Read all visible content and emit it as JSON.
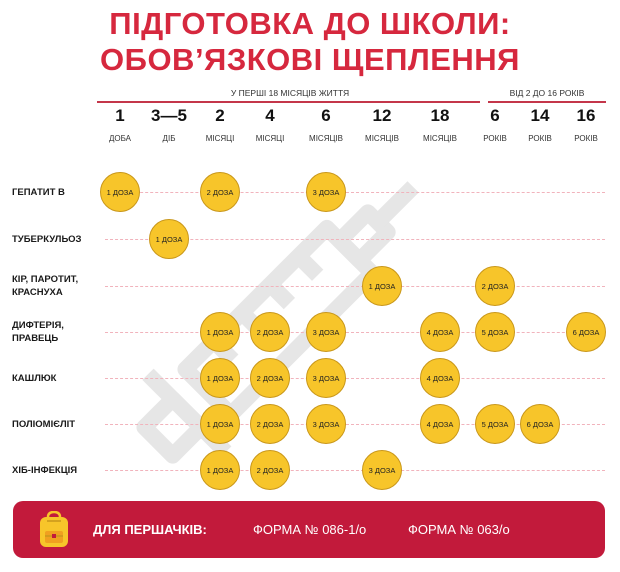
{
  "title": {
    "line1": "ПІДГОТОВКА ДО ШКОЛИ:",
    "line2": "ОБОВ’ЯЗКОВІ ЩЕПЛЕННЯ"
  },
  "periods": {
    "first": "У ПЕРШІ 18 МІСЯЦІВ ЖИТТЯ",
    "second": "ВІД 2 ДО 16 РОКІВ"
  },
  "ages": [
    {
      "num": "1",
      "unit": "ДОБА"
    },
    {
      "num": "3—5",
      "unit": "ДІБ"
    },
    {
      "num": "2",
      "unit": "МІСЯЦІ"
    },
    {
      "num": "4",
      "unit": "МІСЯЦІ"
    },
    {
      "num": "6",
      "unit": "МІСЯЦІВ"
    },
    {
      "num": "12",
      "unit": "МІСЯЦІВ"
    },
    {
      "num": "18",
      "unit": "МІСЯЦІВ"
    },
    {
      "num": "6",
      "unit": "РОКІВ"
    },
    {
      "num": "14",
      "unit": "РОКІВ"
    },
    {
      "num": "16",
      "unit": "РОКІВ"
    }
  ],
  "vaccines": [
    {
      "label": "ГЕПАТИТ В",
      "doses": [
        {
          "col": 0,
          "text": "1 ДОЗА"
        },
        {
          "col": 2,
          "text": "2 ДОЗА"
        },
        {
          "col": 4,
          "text": "3 ДОЗА"
        }
      ]
    },
    {
      "label": "ТУБЕРКУЛЬОЗ",
      "doses": [
        {
          "col": 1,
          "text": "1 ДОЗА"
        }
      ]
    },
    {
      "label": "КІР, ПАРОТИТ,\nКРАСНУХА",
      "doses": [
        {
          "col": 5,
          "text": "1 ДОЗА"
        },
        {
          "col": 7,
          "text": "2 ДОЗА"
        }
      ]
    },
    {
      "label": "ДИФТЕРІЯ,\nПРАВЕЦЬ",
      "doses": [
        {
          "col": 2,
          "text": "1 ДОЗА"
        },
        {
          "col": 3,
          "text": "2 ДОЗА"
        },
        {
          "col": 4,
          "text": "3 ДОЗА"
        },
        {
          "col": 6,
          "text": "4 ДОЗА"
        },
        {
          "col": 7,
          "text": "5 ДОЗА"
        },
        {
          "col": 9,
          "text": "6 ДОЗА"
        }
      ]
    },
    {
      "label": "КАШЛЮК",
      "doses": [
        {
          "col": 2,
          "text": "1 ДОЗА"
        },
        {
          "col": 3,
          "text": "2 ДОЗА"
        },
        {
          "col": 4,
          "text": "3 ДОЗА"
        },
        {
          "col": 6,
          "text": "4 ДОЗА"
        }
      ]
    },
    {
      "label": "ПОЛІОМІЄЛІТ",
      "doses": [
        {
          "col": 2,
          "text": "1 ДОЗА"
        },
        {
          "col": 3,
          "text": "2 ДОЗА"
        },
        {
          "col": 4,
          "text": "3 ДОЗА"
        },
        {
          "col": 6,
          "text": "4 ДОЗА"
        },
        {
          "col": 7,
          "text": "5 ДОЗА"
        },
        {
          "col": 8,
          "text": "6 ДОЗА"
        }
      ]
    },
    {
      "label": "ХІБ-ІНФЕКЦІЯ",
      "doses": [
        {
          "col": 2,
          "text": "1 ДОЗА"
        },
        {
          "col": 3,
          "text": "2 ДОЗА"
        },
        {
          "col": 5,
          "text": "3 ДОЗА"
        }
      ]
    }
  ],
  "footer": {
    "label": "ДЛЯ ПЕРШАЧКІВ:",
    "form1": "ФОРМА № 086-1/о",
    "form2": "ФОРМА № 063/о"
  },
  "colors": {
    "accent": "#d6283e",
    "dose_fill": "#f7c52a",
    "footer_bg": "#c21a3b"
  },
  "icons": {
    "footer": "backpack-icon",
    "watermark": "syringe-watermark"
  }
}
